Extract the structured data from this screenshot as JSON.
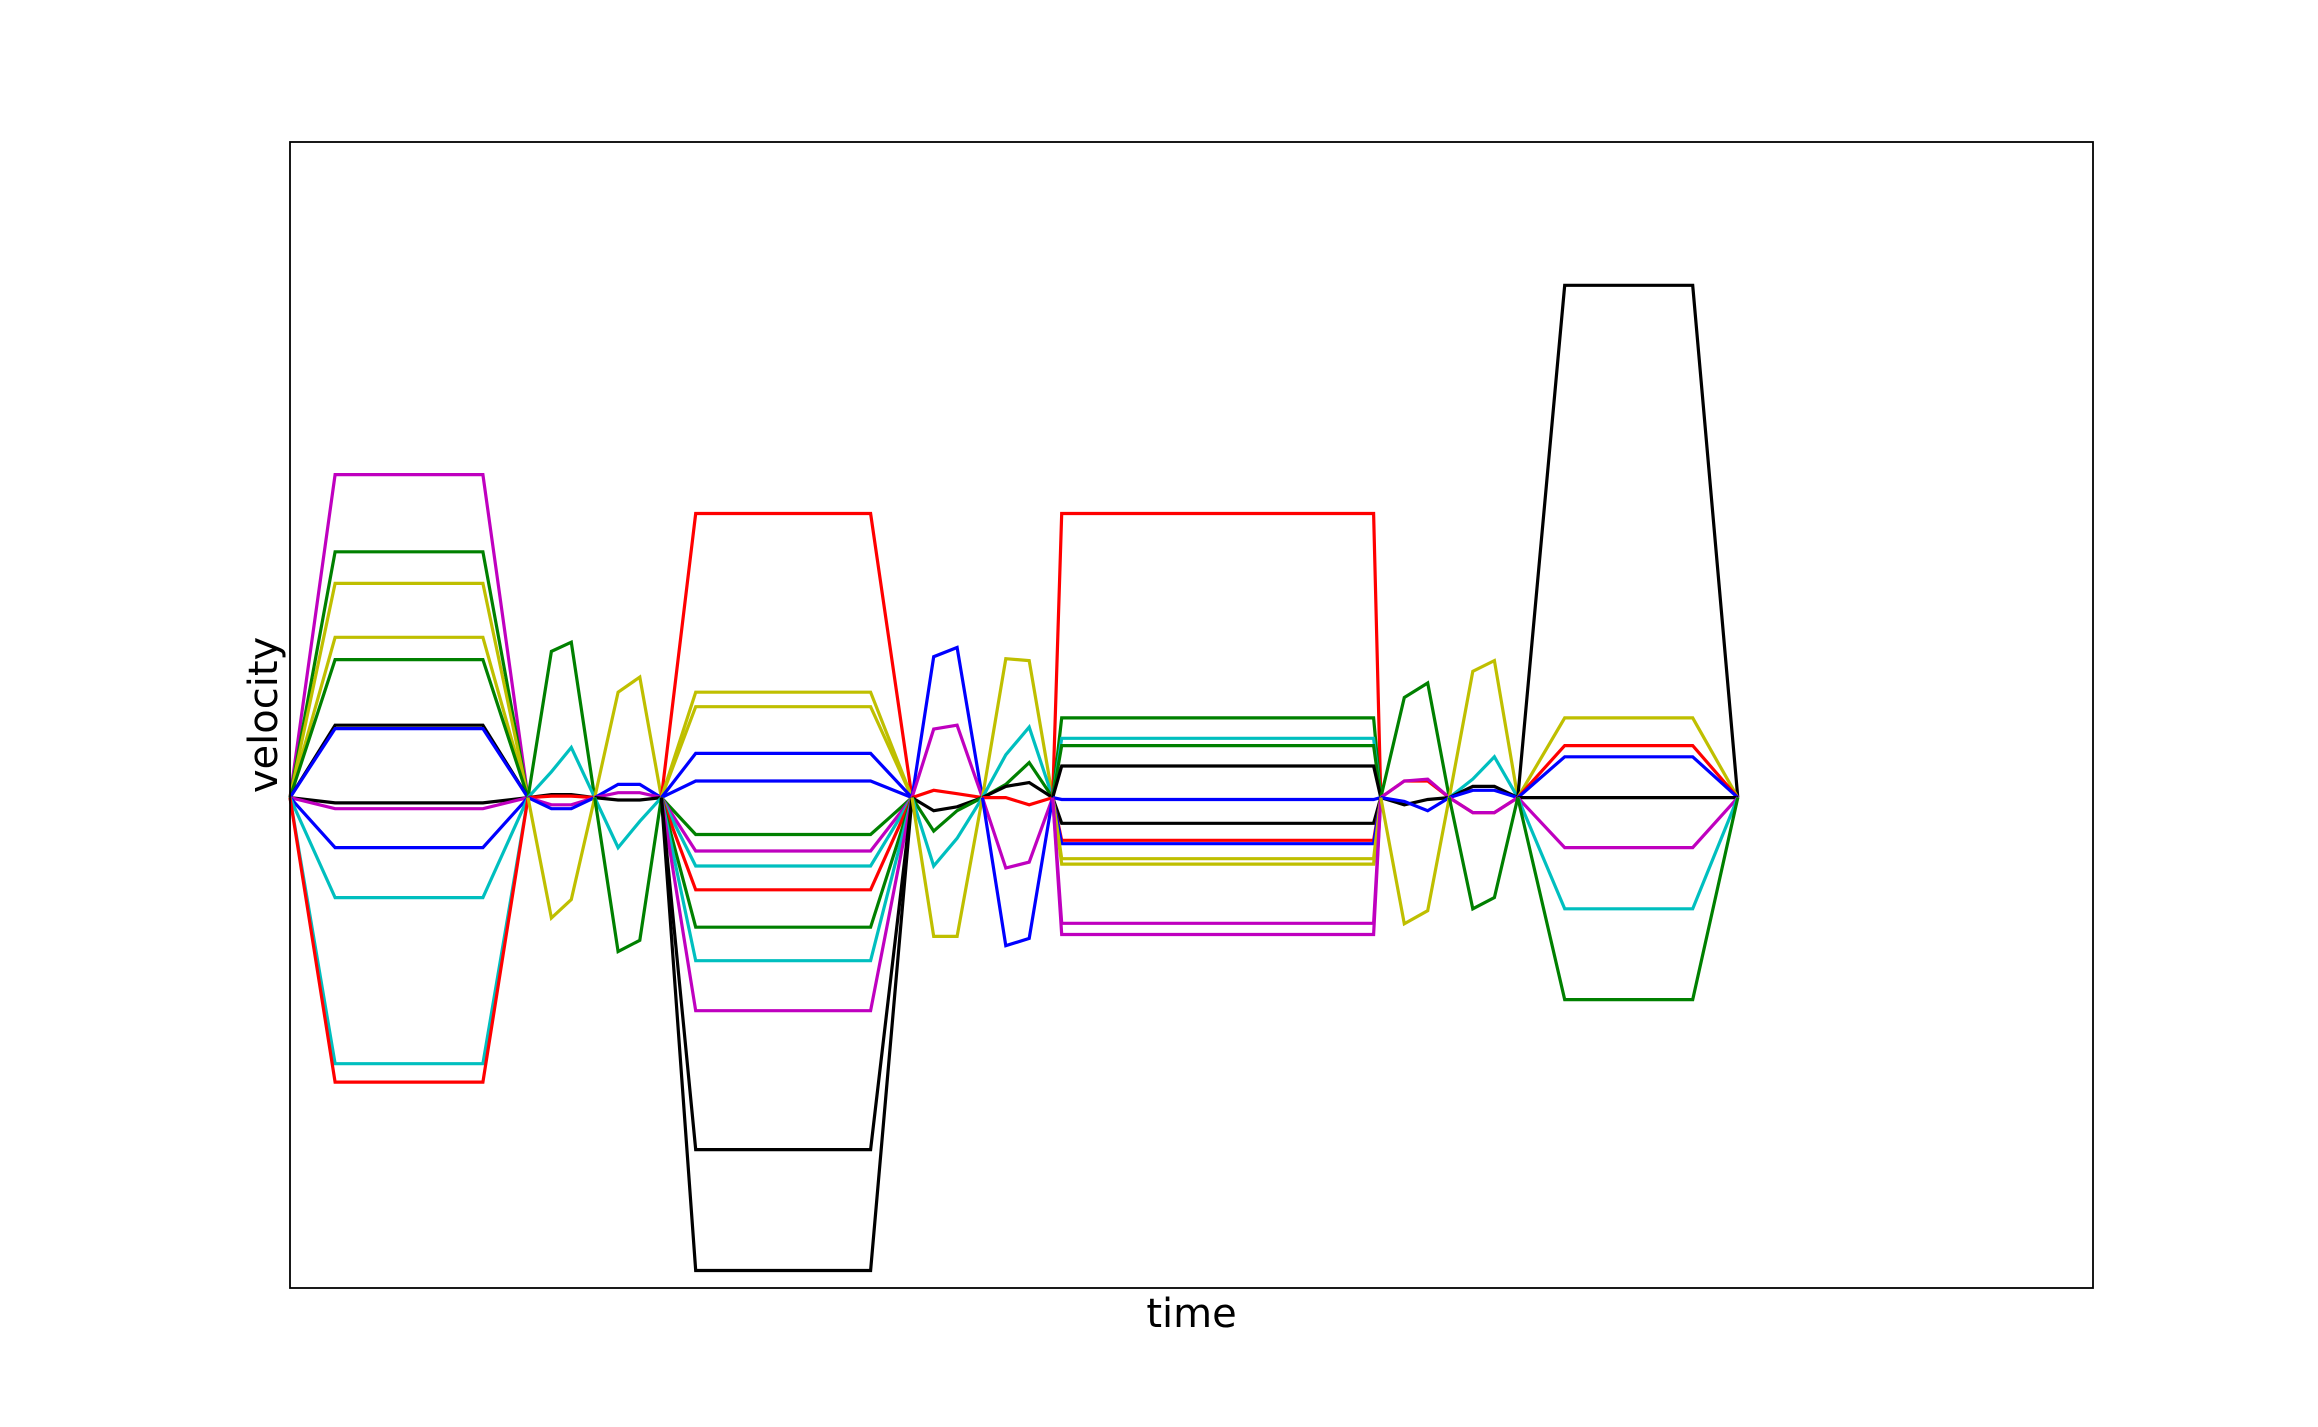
{
  "chart_data": {
    "type": "line",
    "title": "",
    "xlabel": "time",
    "ylabel": "velocity",
    "xlim": [
      0,
      1
    ],
    "ylim": [
      -1.01,
      1.35
    ],
    "grid": false,
    "legend": "none",
    "x_ticks_visible": false,
    "y_ticks_visible": false,
    "segments": [
      {
        "x": [
          0.0,
          0.025,
          0.107,
          0.132
        ],
        "series": [
          {
            "color": "#bf00bf",
            "values": [
              0,
              0.665,
              0.665,
              0
            ]
          },
          {
            "color": "#008000",
            "values": [
              0,
              0.506,
              0.506,
              0
            ]
          },
          {
            "color": "#bfbf00",
            "values": [
              0,
              0.441,
              0.441,
              0
            ]
          },
          {
            "color": "#bfbf00",
            "values": [
              0,
              0.33,
              0.33,
              0
            ]
          },
          {
            "color": "#008000",
            "values": [
              0,
              0.284,
              0.284,
              0
            ]
          },
          {
            "color": "#000000",
            "values": [
              0,
              0.149,
              0.149,
              0
            ]
          },
          {
            "color": "#0000ff",
            "values": [
              0,
              0.142,
              0.142,
              0
            ]
          },
          {
            "color": "#000000",
            "values": [
              0,
              -0.011,
              -0.011,
              0
            ]
          },
          {
            "color": "#bf00bf",
            "values": [
              0,
              -0.023,
              -0.023,
              0
            ]
          },
          {
            "color": "#0000ff",
            "values": [
              0,
              -0.103,
              -0.103,
              0
            ]
          },
          {
            "color": "#00bfbf",
            "values": [
              0,
              -0.206,
              -0.206,
              0
            ]
          },
          {
            "color": "#00bfbf",
            "values": [
              0,
              -0.548,
              -0.548,
              0
            ]
          },
          {
            "color": "#ff0000",
            "values": [
              0,
              -0.586,
              -0.586,
              0
            ]
          }
        ]
      },
      {
        "x": [
          0.132,
          0.145,
          0.156,
          0.169
        ],
        "series": [
          {
            "color": "#008000",
            "values": [
              0,
              0.301,
              0.32,
              0
            ]
          },
          {
            "color": "#00bfbf",
            "values": [
              0,
              0.053,
              0.103,
              0
            ]
          },
          {
            "color": "#000000",
            "values": [
              0,
              0.006,
              0.006,
              0
            ]
          },
          {
            "color": "#ff0000",
            "values": [
              0,
              0.003,
              0.003,
              0
            ]
          },
          {
            "color": "#bf00bf",
            "values": [
              0,
              -0.015,
              -0.015,
              0
            ]
          },
          {
            "color": "#0000ff",
            "values": [
              0,
              -0.023,
              -0.023,
              0
            ]
          },
          {
            "color": "#bfbf00",
            "values": [
              0,
              -0.248,
              -0.21,
              0
            ]
          }
        ]
      },
      {
        "x": [
          0.169,
          0.182,
          0.194,
          0.206
        ],
        "series": [
          {
            "color": "#bfbf00",
            "values": [
              0,
              0.217,
              0.248,
              0
            ]
          },
          {
            "color": "#0000ff",
            "values": [
              0,
              0.027,
              0.027,
              0
            ]
          },
          {
            "color": "#bf00bf",
            "values": [
              0,
              0.01,
              0.01,
              0
            ]
          },
          {
            "color": "#000000",
            "values": [
              0,
              -0.005,
              -0.005,
              0
            ]
          },
          {
            "color": "#00bfbf",
            "values": [
              0,
              -0.103,
              -0.049,
              0
            ]
          },
          {
            "color": "#008000",
            "values": [
              0,
              -0.317,
              -0.294,
              0
            ]
          }
        ]
      },
      {
        "x": [
          0.206,
          0.225,
          0.322,
          0.345
        ],
        "series": [
          {
            "color": "#ff0000",
            "values": [
              0,
              0.585,
              0.585,
              0
            ]
          },
          {
            "color": "#bfbf00",
            "values": [
              0,
              0.217,
              0.217,
              0
            ]
          },
          {
            "color": "#bfbf00",
            "values": [
              0,
              0.187,
              0.187,
              0
            ]
          },
          {
            "color": "#0000ff",
            "values": [
              0,
              0.091,
              0.091,
              0
            ]
          },
          {
            "color": "#0000ff",
            "values": [
              0,
              0.034,
              0.034,
              0
            ]
          },
          {
            "color": "#008000",
            "values": [
              0,
              -0.076,
              -0.076,
              0
            ]
          },
          {
            "color": "#bf00bf",
            "values": [
              0,
              -0.11,
              -0.11,
              0
            ]
          },
          {
            "color": "#00bfbf",
            "values": [
              0,
              -0.141,
              -0.141,
              0
            ]
          },
          {
            "color": "#ff0000",
            "values": [
              0,
              -0.19,
              -0.19,
              0
            ]
          },
          {
            "color": "#008000",
            "values": [
              0,
              -0.267,
              -0.267,
              0
            ]
          },
          {
            "color": "#00bfbf",
            "values": [
              0,
              -0.336,
              -0.336,
              0
            ]
          },
          {
            "color": "#bf00bf",
            "values": [
              0,
              -0.439,
              -0.439,
              0
            ]
          },
          {
            "color": "#000000",
            "values": [
              0,
              -0.725,
              -0.725,
              0
            ]
          },
          {
            "color": "#000000",
            "values": [
              0,
              -0.974,
              -0.974,
              0
            ]
          }
        ]
      },
      {
        "x": [
          0.345,
          0.357,
          0.37,
          0.384
        ],
        "series": [
          {
            "color": "#0000ff",
            "values": [
              0,
              0.29,
              0.309,
              0
            ]
          },
          {
            "color": "#bf00bf",
            "values": [
              0,
              0.141,
              0.149,
              0
            ]
          },
          {
            "color": "#ff0000",
            "values": [
              0,
              0.015,
              0.008,
              0
            ]
          },
          {
            "color": "#000000",
            "values": [
              0,
              -0.027,
              -0.019,
              0
            ]
          },
          {
            "color": "#008000",
            "values": [
              0,
              -0.069,
              -0.027,
              0
            ]
          },
          {
            "color": "#00bfbf",
            "values": [
              0,
              -0.141,
              -0.084,
              0
            ]
          },
          {
            "color": "#bfbf00",
            "values": [
              0,
              -0.286,
              -0.286,
              0
            ]
          }
        ]
      },
      {
        "x": [
          0.384,
          0.397,
          0.41,
          0.423
        ],
        "series": [
          {
            "color": "#bfbf00",
            "values": [
              0,
              0.286,
              0.282,
              0
            ]
          },
          {
            "color": "#00bfbf",
            "values": [
              0,
              0.088,
              0.145,
              0
            ]
          },
          {
            "color": "#008000",
            "values": [
              0,
              0.027,
              0.072,
              0
            ]
          },
          {
            "color": "#000000",
            "values": [
              0,
              0.023,
              0.031,
              0
            ]
          },
          {
            "color": "#ff0000",
            "values": [
              0,
              0.0,
              -0.015,
              0
            ]
          },
          {
            "color": "#bf00bf",
            "values": [
              0,
              -0.145,
              -0.133,
              0
            ]
          },
          {
            "color": "#0000ff",
            "values": [
              0,
              -0.305,
              -0.29,
              0
            ]
          }
        ]
      },
      {
        "x": [
          0.423,
          0.428,
          0.601,
          0.605
        ],
        "series": [
          {
            "color": "#ff0000",
            "values": [
              0,
              0.585,
              0.585,
              0
            ]
          },
          {
            "color": "#008000",
            "values": [
              0,
              0.164,
              0.164,
              0
            ]
          },
          {
            "color": "#00bfbf",
            "values": [
              0,
              0.122,
              0.122,
              0
            ]
          },
          {
            "color": "#008000",
            "values": [
              0,
              0.107,
              0.107,
              0
            ]
          },
          {
            "color": "#000000",
            "values": [
              0,
              0.065,
              0.065,
              0
            ]
          },
          {
            "color": "#0000ff",
            "values": [
              0,
              -0.004,
              -0.004,
              0
            ]
          },
          {
            "color": "#000000",
            "values": [
              0,
              -0.053,
              -0.053,
              0
            ]
          },
          {
            "color": "#ff0000",
            "values": [
              0,
              -0.088,
              -0.088,
              0
            ]
          },
          {
            "color": "#0000ff",
            "values": [
              0,
              -0.095,
              -0.095,
              0
            ]
          },
          {
            "color": "#bfbf00",
            "values": [
              0,
              -0.126,
              -0.126,
              0
            ]
          },
          {
            "color": "#bfbf00",
            "values": [
              0,
              -0.137,
              -0.137,
              0
            ]
          },
          {
            "color": "#bf00bf",
            "values": [
              0,
              -0.259,
              -0.259,
              0
            ]
          },
          {
            "color": "#bf00bf",
            "values": [
              0,
              -0.282,
              -0.282,
              0
            ]
          }
        ]
      },
      {
        "x": [
          0.605,
          0.618,
          0.631,
          0.643
        ],
        "series": [
          {
            "color": "#008000",
            "values": [
              0,
              0.206,
              0.236,
              0
            ]
          },
          {
            "color": "#ff0000",
            "values": [
              0,
              0.034,
              0.034,
              0
            ]
          },
          {
            "color": "#bf00bf",
            "values": [
              0,
              0.034,
              0.038,
              0
            ]
          },
          {
            "color": "#000000",
            "values": [
              0,
              -0.015,
              -0.004,
              0
            ]
          },
          {
            "color": "#0000ff",
            "values": [
              0,
              -0.008,
              -0.027,
              0
            ]
          },
          {
            "color": "#bfbf00",
            "values": [
              0,
              -0.26,
              -0.233,
              0
            ]
          }
        ]
      },
      {
        "x": [
          0.643,
          0.656,
          0.668,
          0.681
        ],
        "series": [
          {
            "color": "#bfbf00",
            "values": [
              0,
              0.26,
              0.282,
              0
            ]
          },
          {
            "color": "#00bfbf",
            "values": [
              0,
              0.038,
              0.084,
              0
            ]
          },
          {
            "color": "#000000",
            "values": [
              0,
              0.023,
              0.023,
              0
            ]
          },
          {
            "color": "#0000ff",
            "values": [
              0,
              0.015,
              0.015,
              0
            ]
          },
          {
            "color": "#ff0000",
            "values": [
              0,
              -0.031,
              -0.031,
              0
            ]
          },
          {
            "color": "#bf00bf",
            "values": [
              0,
              -0.031,
              -0.031,
              0
            ]
          },
          {
            "color": "#008000",
            "values": [
              0,
              -0.229,
              -0.206,
              0
            ]
          }
        ]
      },
      {
        "x": [
          0.681,
          0.707,
          0.778,
          0.803
        ],
        "series": [
          {
            "color": "#000000",
            "values": [
              0,
              1.055,
              1.055,
              0
            ]
          },
          {
            "color": "#bfbf00",
            "values": [
              0,
              0.164,
              0.164,
              0
            ]
          },
          {
            "color": "#ff0000",
            "values": [
              0,
              0.107,
              0.107,
              0
            ]
          },
          {
            "color": "#0000ff",
            "values": [
              0,
              0.084,
              0.084,
              0
            ]
          },
          {
            "color": "#000000",
            "values": [
              0,
              0.0,
              0.0,
              0
            ]
          },
          {
            "color": "#bf00bf",
            "values": [
              0,
              -0.103,
              -0.103,
              0
            ]
          },
          {
            "color": "#00bfbf",
            "values": [
              0,
              -0.229,
              -0.229,
              0
            ]
          },
          {
            "color": "#008000",
            "values": [
              0,
              -0.416,
              -0.416,
              0
            ]
          }
        ]
      }
    ]
  }
}
